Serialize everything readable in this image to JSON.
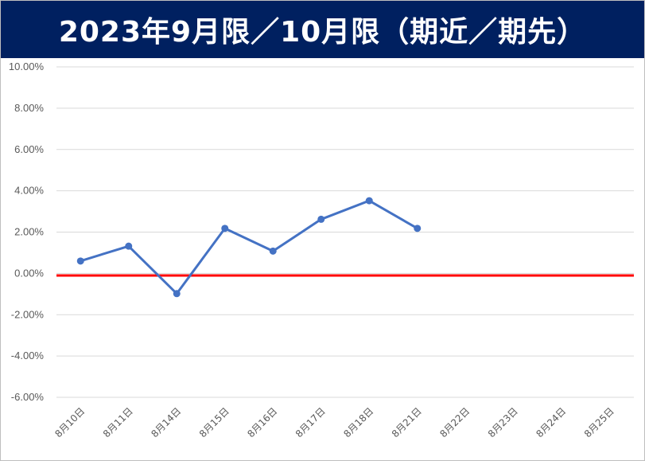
{
  "chart_data": {
    "type": "line",
    "title": "2023年9月限／10月限（期近／期先）",
    "xlabel": "",
    "ylabel": "",
    "categories": [
      "8月10日",
      "8月11日",
      "8月14日",
      "8月15日",
      "8月16日",
      "8月17日",
      "8月18日",
      "8月21日",
      "8月22日",
      "8月23日",
      "8月24日",
      "8月25日"
    ],
    "series": [
      {
        "values": [
          0.6,
          1.32,
          -0.98,
          2.18,
          1.08,
          2.62,
          3.52,
          2.18,
          null,
          null,
          null,
          null
        ],
        "color": "#4472C4"
      }
    ],
    "reference_line": {
      "value": -0.1,
      "color": "#FF0000"
    },
    "ylim": [
      -6,
      10
    ],
    "yticks": [
      10,
      8,
      6,
      4,
      2,
      0,
      -2,
      -4,
      -6
    ],
    "ytick_labels": [
      "10.00%",
      "8.00%",
      "6.00%",
      "4.00%",
      "2.00%",
      "0.00%",
      "-2.00%",
      "-4.00%",
      "-6.00%"
    ],
    "grid": true,
    "legend": "none"
  },
  "colors": {
    "title_background": "#002060",
    "title_text": "#FFFFFF",
    "grid": "#D9D9D9",
    "series": "#4472C4",
    "reference_line": "#FF0000"
  }
}
